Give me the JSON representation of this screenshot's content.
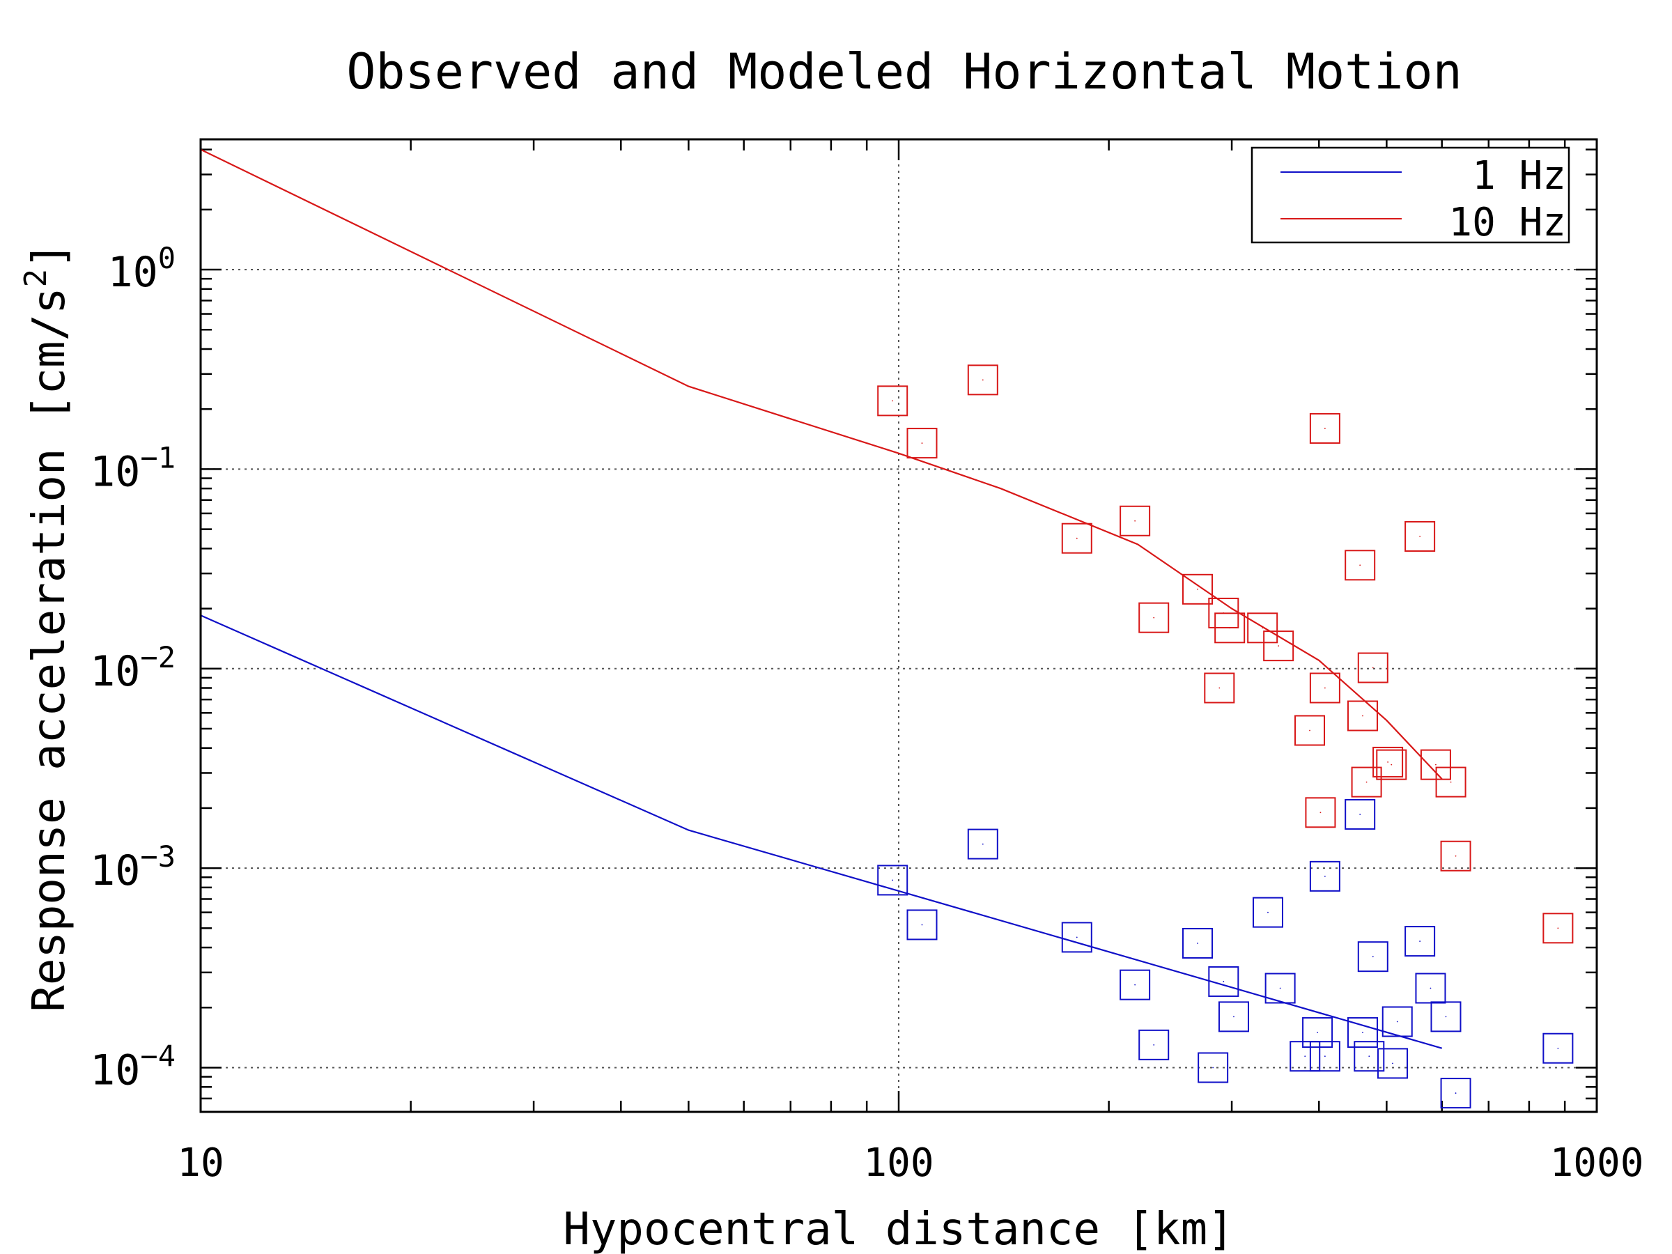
{
  "chart_data": {
    "type": "scatter",
    "title": "Observed and Modeled Horizontal Motion",
    "xlabel": "Hypocentral distance [km]",
    "ylabel_main": "Response acceleration [cm/s",
    "ylabel_sup": "2",
    "ylabel_close": "]",
    "x_scale": "log",
    "y_scale": "log",
    "xlim": [
      10,
      1000
    ],
    "ylim": [
      6e-05,
      4.5
    ],
    "x_ticks": [
      {
        "value": 10,
        "label": "10"
      },
      {
        "value": 100,
        "label": "100"
      },
      {
        "value": 1000,
        "label": "1000"
      }
    ],
    "y_ticks": [
      {
        "value": 1,
        "base": "10",
        "exp": "0"
      },
      {
        "value": 0.1,
        "base": "10",
        "exp": "−1"
      },
      {
        "value": 0.01,
        "base": "10",
        "exp": "−2"
      },
      {
        "value": 0.001,
        "base": "10",
        "exp": "−3"
      },
      {
        "value": 0.0001,
        "base": "10",
        "exp": "−4"
      }
    ],
    "grid": "dotted",
    "legend_position": "top-right",
    "lines": [
      {
        "name": "1 Hz",
        "color": "#1010c8",
        "x": [
          10,
          50,
          600
        ],
        "y": [
          0.0185,
          0.00155,
          0.000125
        ]
      },
      {
        "name": "10 Hz",
        "color": "#d81818",
        "x": [
          10,
          50,
          100,
          140,
          220,
          300,
          400,
          500,
          600
        ],
        "y": [
          4.0,
          0.26,
          0.12,
          0.08,
          0.042,
          0.02,
          0.011,
          0.0055,
          0.0028
        ]
      }
    ],
    "series": [
      {
        "name": "10 Hz observed",
        "color": "#d81818",
        "marker": "square",
        "points": [
          [
            98,
            0.22
          ],
          [
            108,
            0.135
          ],
          [
            132,
            0.28
          ],
          [
            180,
            0.045
          ],
          [
            218,
            0.055
          ],
          [
            232,
            0.018
          ],
          [
            268,
            0.025
          ],
          [
            292,
            0.019
          ],
          [
            298,
            0.016
          ],
          [
            288,
            0.008
          ],
          [
            332,
            0.016
          ],
          [
            350,
            0.013
          ],
          [
            388,
            0.0049
          ],
          [
            408,
            0.16
          ],
          [
            408,
            0.008
          ],
          [
            402,
            0.0019
          ],
          [
            458,
            0.033
          ],
          [
            462,
            0.0058
          ],
          [
            478,
            0.0101
          ],
          [
            468,
            0.0027
          ],
          [
            502,
            0.0034
          ],
          [
            508,
            0.0033
          ],
          [
            558,
            0.046
          ],
          [
            588,
            0.0033
          ],
          [
            618,
            0.0027
          ],
          [
            628,
            0.00115
          ],
          [
            880,
            0.0005
          ]
        ]
      },
      {
        "name": "1 Hz observed",
        "color": "#1010c8",
        "marker": "square",
        "points": [
          [
            98,
            0.00087
          ],
          [
            108,
            0.00052
          ],
          [
            132,
            0.00132
          ],
          [
            180,
            0.00045
          ],
          [
            218,
            0.00026
          ],
          [
            232,
            0.00013
          ],
          [
            268,
            0.00042
          ],
          [
            282,
            0.0001
          ],
          [
            292,
            0.00027
          ],
          [
            302,
            0.00018
          ],
          [
            338,
            0.0006
          ],
          [
            352,
            0.00025
          ],
          [
            382,
            0.000114
          ],
          [
            398,
            0.00015
          ],
          [
            408,
            0.000114
          ],
          [
            408,
            0.00091
          ],
          [
            458,
            0.00186
          ],
          [
            462,
            0.00015
          ],
          [
            472,
            0.000114
          ],
          [
            478,
            0.00036
          ],
          [
            510,
            0.000105
          ],
          [
            518,
            0.00017
          ],
          [
            558,
            0.00043
          ],
          [
            578,
            0.00025
          ],
          [
            608,
            0.00018
          ],
          [
            628,
            7.45e-05
          ],
          [
            880,
            0.000125
          ]
        ]
      }
    ]
  }
}
